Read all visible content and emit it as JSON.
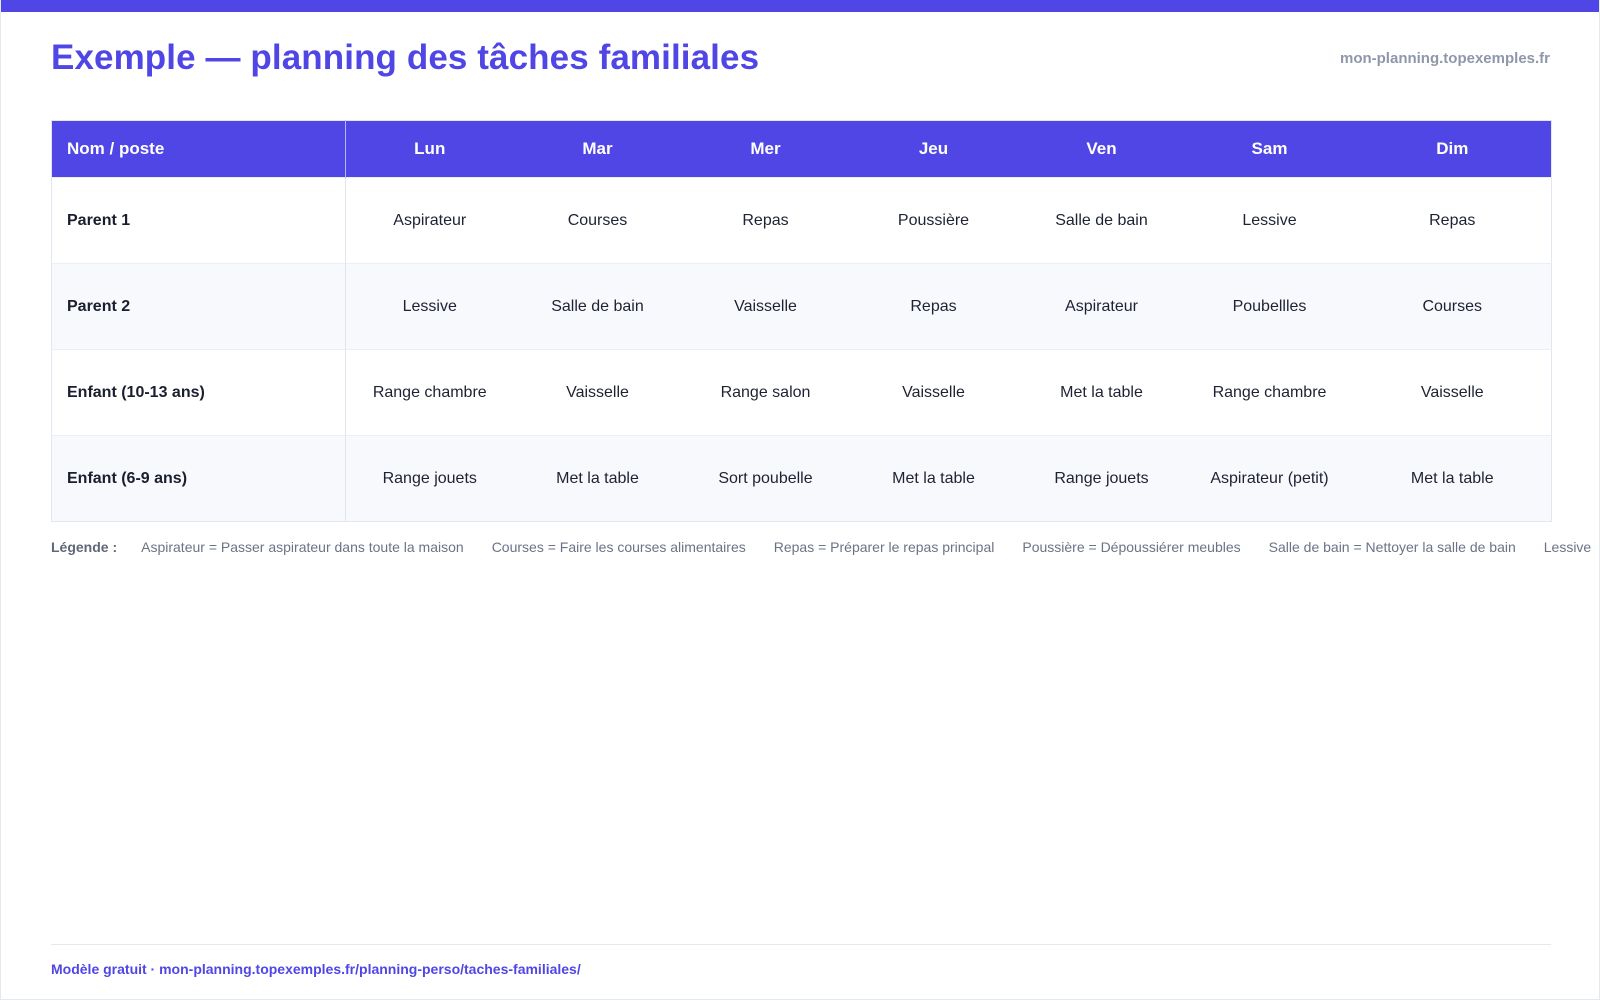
{
  "header": {
    "title": "Exemple — planning des tâches familiales",
    "site": "mon-planning.topexemples.fr"
  },
  "table": {
    "name_header": "Nom / poste",
    "days": [
      "Lun",
      "Mar",
      "Mer",
      "Jeu",
      "Ven",
      "Sam",
      "Dim"
    ],
    "rows": [
      {
        "name": "Parent 1",
        "tasks": [
          "Aspirateur",
          "Courses",
          "Repas",
          "Poussière",
          "Salle de bain",
          "Lessive",
          "Repas"
        ]
      },
      {
        "name": "Parent 2",
        "tasks": [
          "Lessive",
          "Salle de bain",
          "Vaisselle",
          "Repas",
          "Aspirateur",
          "Poubellles",
          "Courses"
        ]
      },
      {
        "name": "Enfant (10-13 ans)",
        "tasks": [
          "Range chambre",
          "Vaisselle",
          "Range salon",
          "Vaisselle",
          "Met la table",
          "Range chambre",
          "Vaisselle"
        ]
      },
      {
        "name": "Enfant (6-9 ans)",
        "tasks": [
          "Range jouets",
          "Met la table",
          "Sort poubelle",
          "Met la table",
          "Range jouets",
          "Aspirateur (petit)",
          "Met la table"
        ]
      }
    ]
  },
  "legend": {
    "label": "Légende :",
    "items": [
      "Aspirateur = Passer aspirateur dans toute la maison",
      "Courses = Faire les courses alimentaires",
      "Repas = Préparer le repas principal",
      "Poussière = Dépoussiérer meubles",
      "Salle de bain = Nettoyer la salle de bain",
      "Lessive"
    ]
  },
  "footer": {
    "text": "Modèle gratuit · mon-planning.topexemples.fr/planning-perso/taches-familiales/"
  }
}
